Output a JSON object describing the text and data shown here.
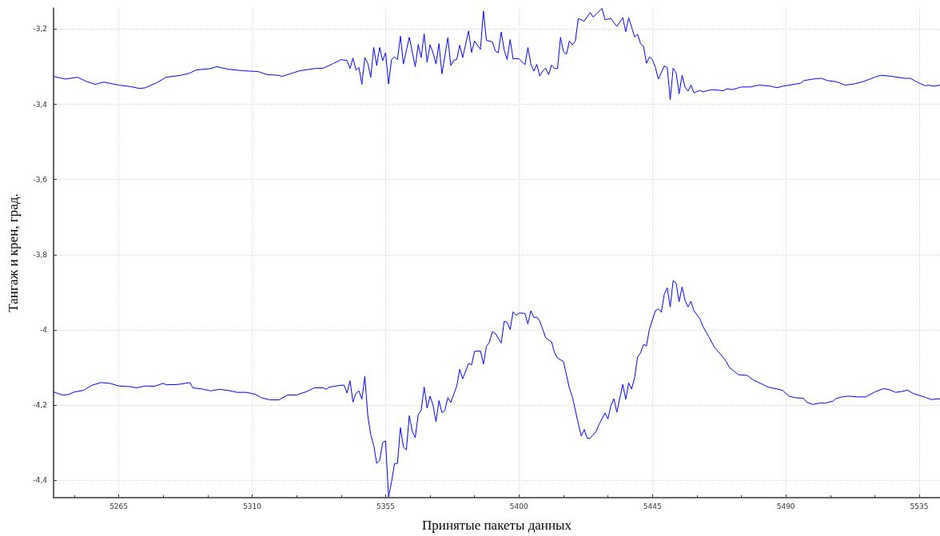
{
  "chart_data": {
    "type": "line",
    "xlabel": "Принятые пакеты данных",
    "ylabel": "Тангаж и крен, град.",
    "xlim": [
      5243,
      5542
    ],
    "ylim": [
      -4.446,
      -3.144
    ],
    "xticks": [
      {
        "value": 5250,
        "label": null
      },
      5265,
      {
        "value": 5280,
        "label": null
      },
      {
        "value": 5295,
        "label": null
      },
      5310,
      {
        "value": 5325,
        "label": null
      },
      {
        "value": 5340,
        "label": null
      },
      5355,
      {
        "value": 5370,
        "label": null
      },
      {
        "value": 5385,
        "label": null
      },
      5400,
      {
        "value": 5415,
        "label": null
      },
      {
        "value": 5430,
        "label": null
      },
      5445,
      {
        "value": 5460,
        "label": null
      },
      {
        "value": 5475,
        "label": null
      },
      5490,
      {
        "value": 5505,
        "label": null
      },
      {
        "value": 5520,
        "label": null
      },
      5535
    ],
    "yticks": [
      {
        "value": -4.4,
        "label": "-4,4"
      },
      {
        "value": -4.2,
        "label": "-4,2"
      },
      -4,
      {
        "value": -3.8,
        "label": "-3,8"
      },
      {
        "value": -3.6,
        "label": "-3,6"
      },
      {
        "value": -3.4,
        "label": "-3,4"
      },
      {
        "value": -3.2,
        "label": "-3,2"
      }
    ],
    "grid": true,
    "marker": "none",
    "line_style": "solid",
    "series": [
      {
        "color": "#0000ff",
        "x": [
          5243,
          5247,
          5251,
          5254,
          5257,
          5260,
          5265,
          5269,
          5272,
          5274,
          5278,
          5281,
          5286,
          5289,
          5291,
          5296,
          5298,
          5302,
          5307,
          5312,
          5315,
          5319,
          5320,
          5326,
          5331,
          5334,
          5337,
          5340,
          5342,
          5343,
          5344,
          5345,
          5346,
          5347,
          5348,
          5349,
          5350,
          5351,
          5352,
          5353,
          5354,
          5355,
          5356,
          5357,
          5358,
          5359,
          5360,
          5361,
          5363,
          5365,
          5366,
          5367,
          5368,
          5369,
          5370,
          5371,
          5372,
          5373,
          5374,
          5376,
          5377,
          5378,
          5379,
          5380,
          5381,
          5383,
          5384,
          5385,
          5387,
          5388,
          5389,
          5391,
          5392,
          5393,
          5394,
          5395,
          5396,
          5397,
          5398,
          5400,
          5402,
          5403,
          5404,
          5405,
          5406,
          5407,
          5408,
          5409,
          5410,
          5411,
          5412,
          5413,
          5414,
          5415,
          5416,
          5417,
          5418,
          5419,
          5420,
          5422,
          5424,
          5425,
          5428,
          5429,
          5431,
          5433,
          5435,
          5436,
          5437,
          5439,
          5440,
          5441,
          5442,
          5443,
          5444,
          5445,
          5446,
          5447,
          5449,
          5450,
          5451,
          5452,
          5453,
          5454,
          5455,
          5456,
          5457,
          5458,
          5459,
          5461,
          5462,
          5465,
          5469,
          5470,
          5472,
          5475,
          5478,
          5481,
          5485,
          5487,
          5489,
          5492,
          5495,
          5496,
          5500,
          5502,
          5504,
          5507,
          5510,
          5513,
          5516,
          5520,
          5522,
          5525,
          5530,
          5532,
          5534,
          5537,
          5538,
          5540,
          5542
        ],
        "values": [
          -3.326,
          -3.333,
          -3.328,
          -3.339,
          -3.347,
          -3.341,
          -3.349,
          -3.353,
          -3.358,
          -3.356,
          -3.342,
          -3.328,
          -3.323,
          -3.317,
          -3.309,
          -3.305,
          -3.3,
          -3.307,
          -3.311,
          -3.313,
          -3.321,
          -3.323,
          -3.326,
          -3.311,
          -3.305,
          -3.304,
          -3.293,
          -3.281,
          -3.284,
          -3.305,
          -3.277,
          -3.309,
          -3.302,
          -3.347,
          -3.276,
          -3.291,
          -3.328,
          -3.249,
          -3.297,
          -3.249,
          -3.284,
          -3.263,
          -3.346,
          -3.281,
          -3.274,
          -3.281,
          -3.219,
          -3.293,
          -3.222,
          -3.3,
          -3.241,
          -3.276,
          -3.213,
          -3.288,
          -3.242,
          -3.263,
          -3.293,
          -3.239,
          -3.319,
          -3.223,
          -3.297,
          -3.283,
          -3.281,
          -3.243,
          -3.276,
          -3.205,
          -3.262,
          -3.232,
          -3.254,
          -3.152,
          -3.23,
          -3.234,
          -3.258,
          -3.263,
          -3.208,
          -3.256,
          -3.281,
          -3.228,
          -3.279,
          -3.279,
          -3.295,
          -3.249,
          -3.293,
          -3.312,
          -3.294,
          -3.325,
          -3.311,
          -3.304,
          -3.321,
          -3.296,
          -3.305,
          -3.305,
          -3.222,
          -3.26,
          -3.267,
          -3.232,
          -3.242,
          -3.232,
          -3.172,
          -3.179,
          -3.156,
          -3.168,
          -3.145,
          -3.175,
          -3.172,
          -3.193,
          -3.17,
          -3.207,
          -3.17,
          -3.221,
          -3.214,
          -3.239,
          -3.246,
          -3.291,
          -3.274,
          -3.281,
          -3.302,
          -3.333,
          -3.298,
          -3.302,
          -3.388,
          -3.304,
          -3.316,
          -3.372,
          -3.323,
          -3.354,
          -3.365,
          -3.349,
          -3.37,
          -3.363,
          -3.367,
          -3.361,
          -3.364,
          -3.359,
          -3.361,
          -3.354,
          -3.354,
          -3.349,
          -3.352,
          -3.356,
          -3.352,
          -3.348,
          -3.344,
          -3.337,
          -3.332,
          -3.331,
          -3.337,
          -3.34,
          -3.349,
          -3.346,
          -3.34,
          -3.328,
          -3.323,
          -3.325,
          -3.331,
          -3.331,
          -3.34,
          -3.351,
          -3.349,
          -3.352,
          -3.349
        ]
      },
      {
        "color": "#0000ff",
        "x": [
          5243,
          5246,
          5248,
          5250,
          5253,
          5256,
          5259,
          5262,
          5265,
          5269,
          5271,
          5274,
          5277,
          5280,
          5281,
          5285,
          5289,
          5290,
          5293,
          5296,
          5299,
          5302,
          5305,
          5308,
          5311,
          5313,
          5316,
          5319,
          5322,
          5325,
          5328,
          5331,
          5334,
          5335,
          5336,
          5340,
          5341,
          5342,
          5343,
          5344,
          5345,
          5346,
          5347,
          5348,
          5349,
          5350,
          5351,
          5352,
          5353,
          5354,
          5355,
          5356,
          5357,
          5358,
          5359,
          5360,
          5361,
          5362,
          5363,
          5364,
          5365,
          5366,
          5367,
          5368,
          5369,
          5370,
          5371,
          5372,
          5373,
          5374,
          5375,
          5376,
          5377,
          5379,
          5380,
          5381,
          5383,
          5384,
          5385,
          5387,
          5388,
          5389,
          5390,
          5391,
          5392,
          5394,
          5395,
          5396,
          5397,
          5398,
          5399,
          5400,
          5402,
          5403,
          5404,
          5405,
          5406,
          5407,
          5409,
          5411,
          5412,
          5413,
          5415,
          5417,
          5418,
          5420,
          5421,
          5422,
          5423,
          5424,
          5426,
          5427,
          5429,
          5430,
          5431,
          5432,
          5433,
          5435,
          5436,
          5437,
          5438,
          5439,
          5440,
          5441,
          5442,
          5443,
          5444,
          5446,
          5447,
          5448,
          5449,
          5450,
          5451,
          5452,
          5453,
          5454,
          5455,
          5456,
          5457,
          5458,
          5459,
          5461,
          5462,
          5464,
          5466,
          5469,
          5470,
          5471,
          5474,
          5477,
          5479,
          5482,
          5484,
          5487,
          5489,
          5491,
          5493,
          5496,
          5497,
          5499,
          5502,
          5503,
          5506,
          5507,
          5509,
          5511,
          5514,
          5517,
          5520,
          5523,
          5525,
          5527,
          5529,
          5531,
          5533,
          5535,
          5537,
          5539,
          5542
        ],
        "values": [
          -4.165,
          -4.173,
          -4.172,
          -4.165,
          -4.161,
          -4.147,
          -4.14,
          -4.142,
          -4.149,
          -4.151,
          -4.154,
          -4.149,
          -4.15,
          -4.142,
          -4.146,
          -4.145,
          -4.14,
          -4.154,
          -4.157,
          -4.162,
          -4.158,
          -4.161,
          -4.166,
          -4.166,
          -4.171,
          -4.18,
          -4.186,
          -4.186,
          -4.173,
          -4.173,
          -4.165,
          -4.154,
          -4.154,
          -4.158,
          -4.152,
          -4.147,
          -4.147,
          -4.168,
          -4.135,
          -4.192,
          -4.169,
          -4.162,
          -4.184,
          -4.124,
          -4.228,
          -4.279,
          -4.307,
          -4.355,
          -4.347,
          -4.3,
          -4.295,
          -4.444,
          -4.404,
          -4.356,
          -4.355,
          -4.26,
          -4.311,
          -4.319,
          -4.228,
          -4.27,
          -4.286,
          -4.225,
          -4.214,
          -4.152,
          -4.208,
          -4.176,
          -4.2,
          -4.244,
          -4.188,
          -4.22,
          -4.214,
          -4.18,
          -4.193,
          -4.149,
          -4.105,
          -4.13,
          -4.089,
          -4.093,
          -4.057,
          -4.056,
          -4.091,
          -4.044,
          -4.033,
          -4.005,
          -4.009,
          -4.035,
          -3.977,
          -3.98,
          -3.999,
          -3.952,
          -3.961,
          -3.955,
          -3.956,
          -3.984,
          -3.949,
          -3.967,
          -3.966,
          -3.976,
          -4.021,
          -4.032,
          -4.061,
          -4.075,
          -4.084,
          -4.155,
          -4.178,
          -4.249,
          -4.282,
          -4.265,
          -4.288,
          -4.288,
          -4.27,
          -4.251,
          -4.221,
          -4.237,
          -4.201,
          -4.183,
          -4.219,
          -4.145,
          -4.184,
          -4.141,
          -4.157,
          -4.126,
          -4.072,
          -4.061,
          -4.039,
          -4.042,
          -3.998,
          -3.949,
          -3.944,
          -3.953,
          -3.905,
          -3.888,
          -3.939,
          -3.869,
          -3.876,
          -3.925,
          -3.886,
          -3.921,
          -3.939,
          -3.924,
          -3.949,
          -3.97,
          -3.99,
          -4.018,
          -4.047,
          -4.074,
          -4.086,
          -4.1,
          -4.119,
          -4.121,
          -4.133,
          -4.144,
          -4.152,
          -4.157,
          -4.161,
          -4.176,
          -4.18,
          -4.182,
          -4.192,
          -4.198,
          -4.194,
          -4.195,
          -4.189,
          -4.182,
          -4.178,
          -4.176,
          -4.178,
          -4.178,
          -4.165,
          -4.156,
          -4.159,
          -4.166,
          -4.164,
          -4.16,
          -4.169,
          -4.174,
          -4.179,
          -4.185,
          -4.183
        ]
      }
    ]
  }
}
